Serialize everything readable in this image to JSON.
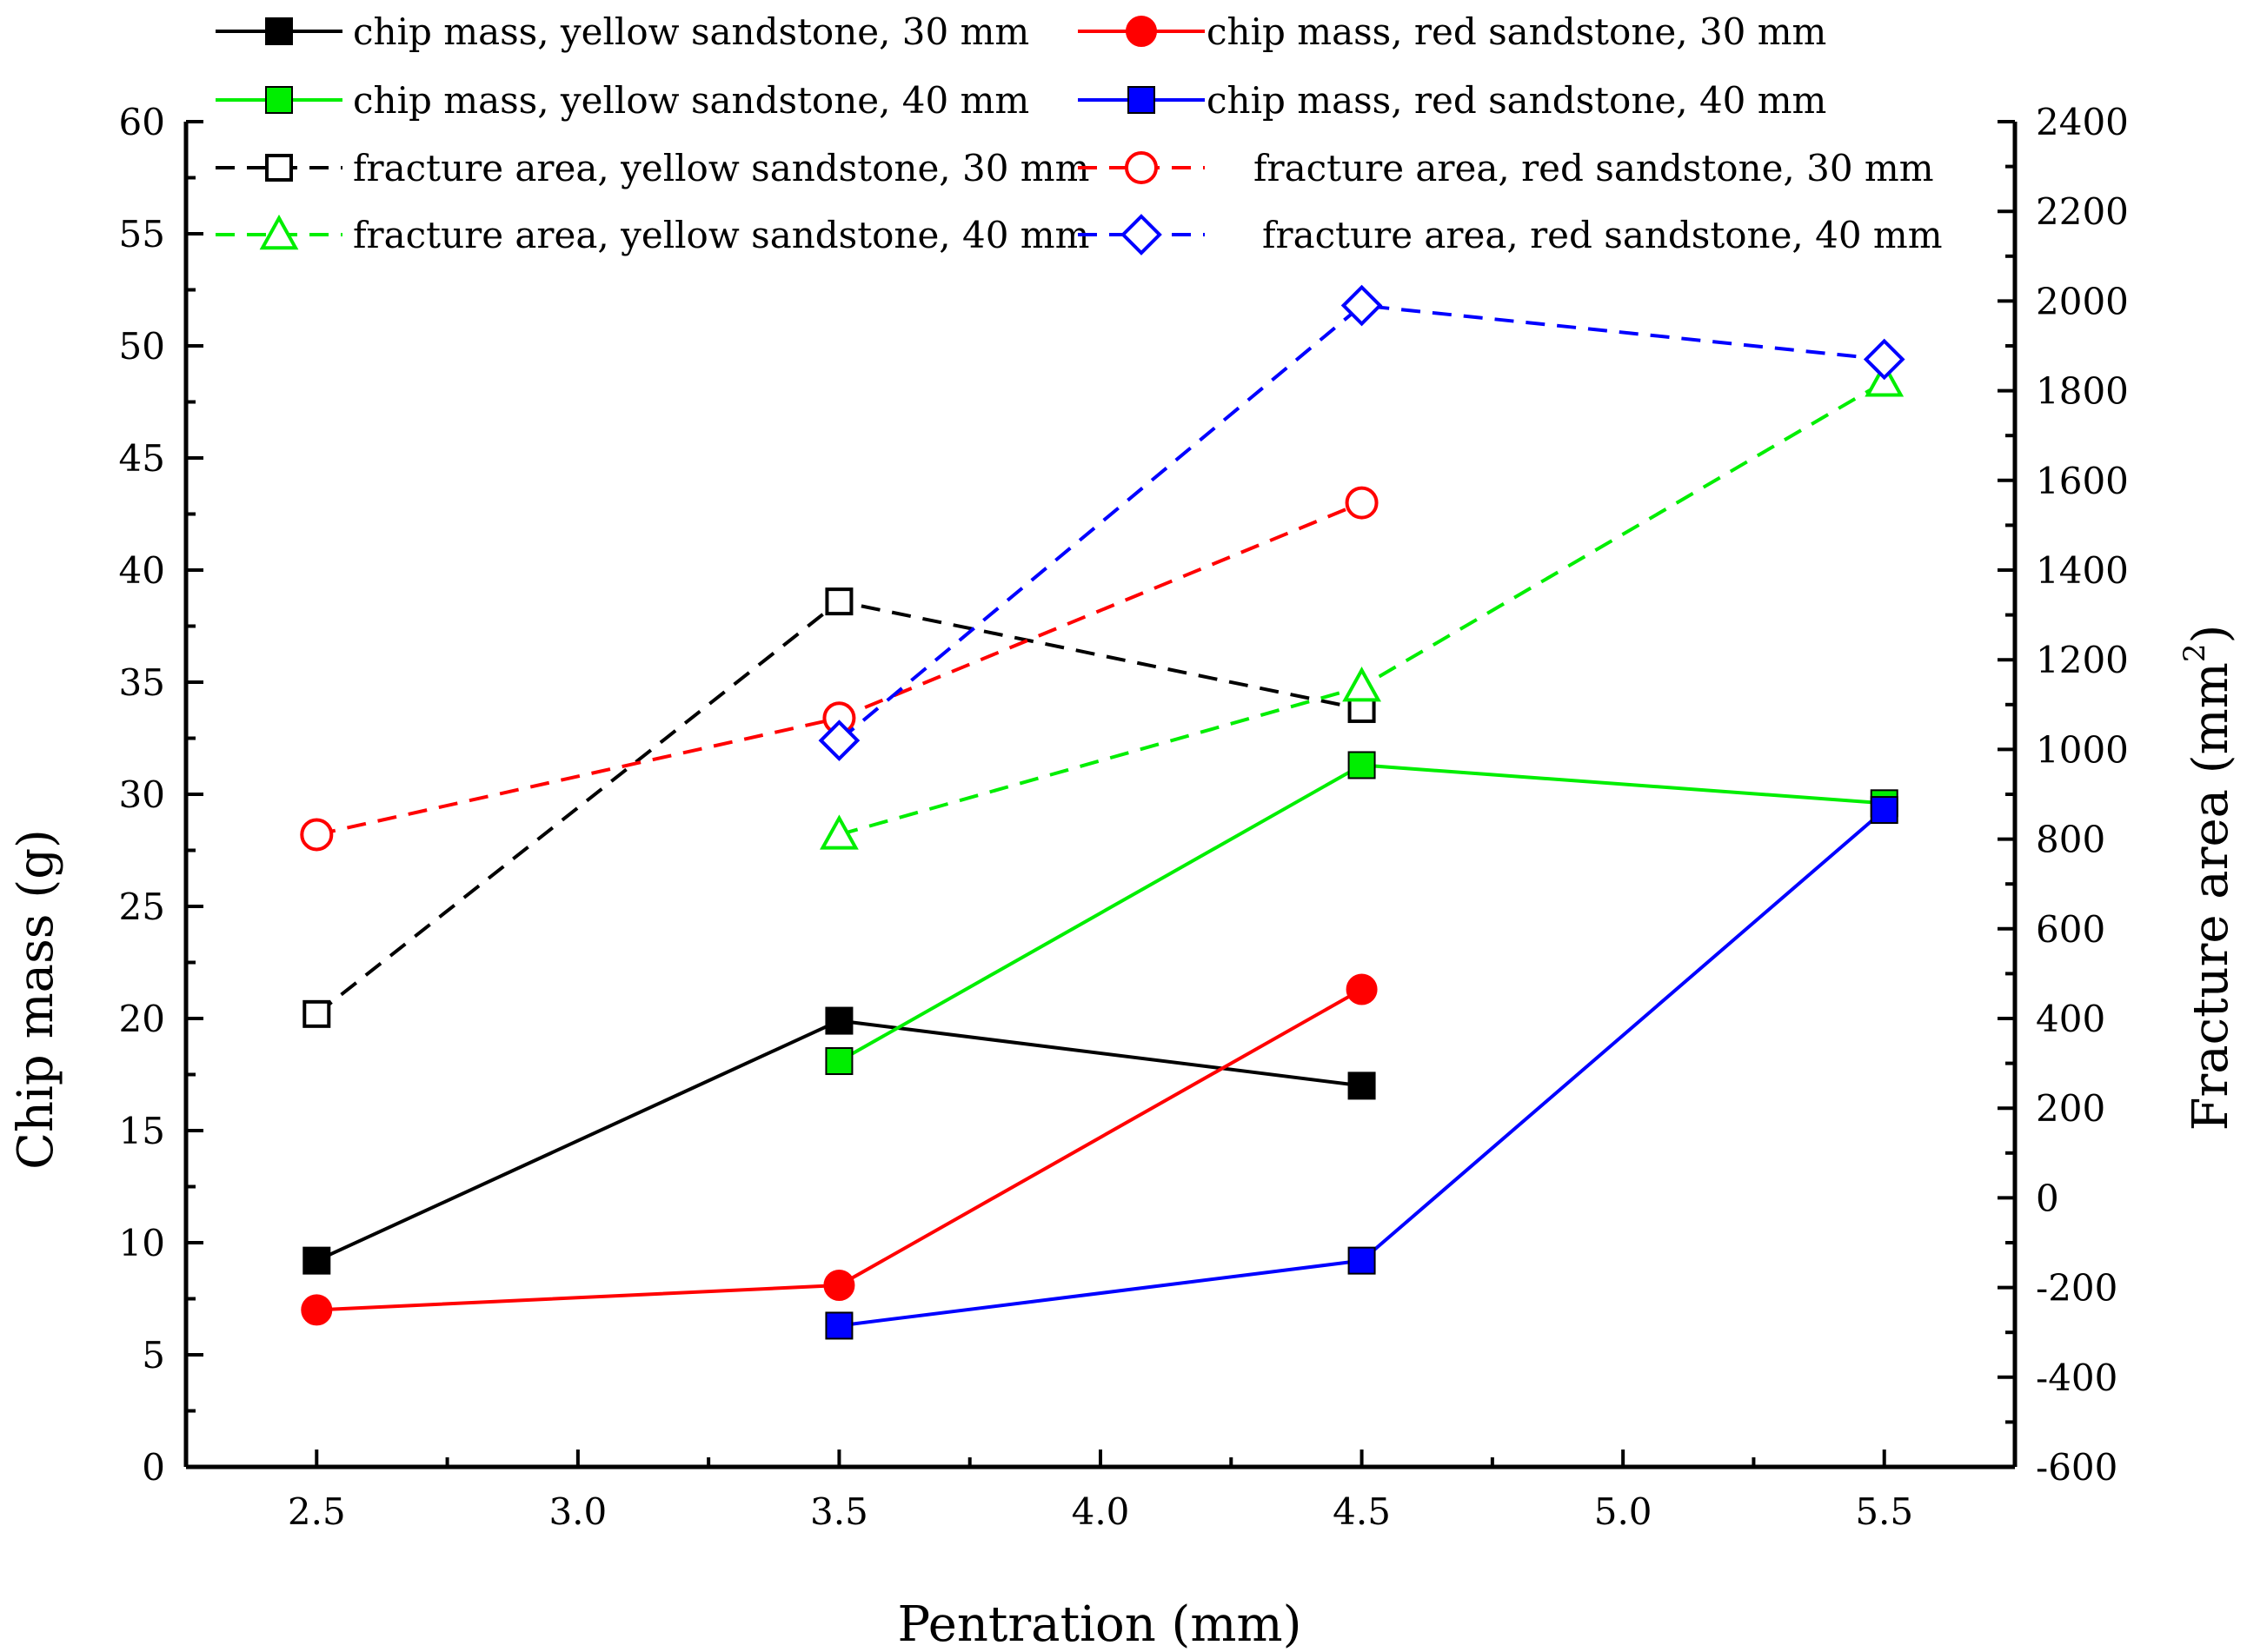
{
  "chart_data": {
    "type": "line",
    "xlabel": "Pentration (mm)",
    "ylabel": "Chip mass (g)",
    "y2label": "Fracture area (mm",
    "y2label_superscript": "2",
    "xlim": [
      2.25,
      5.75
    ],
    "ylim": [
      0,
      60
    ],
    "y2lim": [
      -600,
      2400
    ],
    "x_ticks": [
      "2.5",
      "3.0",
      "3.5",
      "4.0",
      "4.5",
      "5.0",
      "5.5"
    ],
    "y_ticks": [
      "0",
      "5",
      "10",
      "15",
      "20",
      "25",
      "30",
      "35",
      "40",
      "45",
      "50",
      "55",
      "60"
    ],
    "y2_ticks": [
      "-600",
      "-400",
      "-200",
      "0",
      "200",
      "400",
      "600",
      "800",
      "1000",
      "1200",
      "1400",
      "1600",
      "1800",
      "2000",
      "2200",
      "2400"
    ],
    "legend_position": "top",
    "series": [
      {
        "name": "chip mass, yellow sandstone, 30 mm",
        "axis": "left",
        "color": "#000000",
        "dash": "solid",
        "marker": "square-filled",
        "x": [
          2.5,
          3.5,
          4.5
        ],
        "values": [
          9.2,
          19.9,
          17.0
        ]
      },
      {
        "name": "chip mass, red sandstone, 30 mm",
        "axis": "left",
        "color": "#ff0000",
        "dash": "solid",
        "marker": "circle-filled",
        "x": [
          2.5,
          3.5,
          4.5
        ],
        "values": [
          7.0,
          8.1,
          21.3
        ]
      },
      {
        "name": "chip mass, yellow sandstone, 40 mm",
        "axis": "left",
        "color": "#00ee00",
        "dash": "solid",
        "marker": "square-filled",
        "x": [
          3.5,
          4.5,
          5.5
        ],
        "values": [
          18.1,
          31.3,
          29.6
        ]
      },
      {
        "name": "chip mass, red sandstone, 40 mm",
        "axis": "left",
        "color": "#0000ff",
        "dash": "solid",
        "marker": "square-filled",
        "x": [
          3.5,
          4.5,
          5.5
        ],
        "values": [
          6.3,
          9.2,
          29.3
        ]
      },
      {
        "name": "fracture area, yellow sandstone, 30 mm",
        "axis": "right",
        "color": "#000000",
        "dash": "dashed",
        "marker": "square-open",
        "x": [
          2.5,
          3.5,
          4.5
        ],
        "values": [
          410,
          1330,
          1090
        ]
      },
      {
        "name": "fracture area, red sandstone, 30 mm",
        "axis": "right",
        "color": "#ff0000",
        "dash": "dashed",
        "marker": "circle-open",
        "x": [
          2.5,
          3.5,
          4.5
        ],
        "values": [
          810,
          1070,
          1550
        ]
      },
      {
        "name": "fracture area, yellow sandstone, 40 mm",
        "axis": "right",
        "color": "#00ee00",
        "dash": "dashed",
        "marker": "triangle-open",
        "x": [
          3.5,
          4.5,
          5.5
        ],
        "values": [
          810,
          1140,
          1820
        ]
      },
      {
        "name": "fracture area, red sandstone, 40 mm",
        "axis": "right",
        "color": "#0000ff",
        "dash": "dashed",
        "marker": "diamond-open",
        "x": [
          3.5,
          4.5,
          5.5
        ],
        "values": [
          1020,
          1990,
          1870
        ]
      }
    ]
  }
}
